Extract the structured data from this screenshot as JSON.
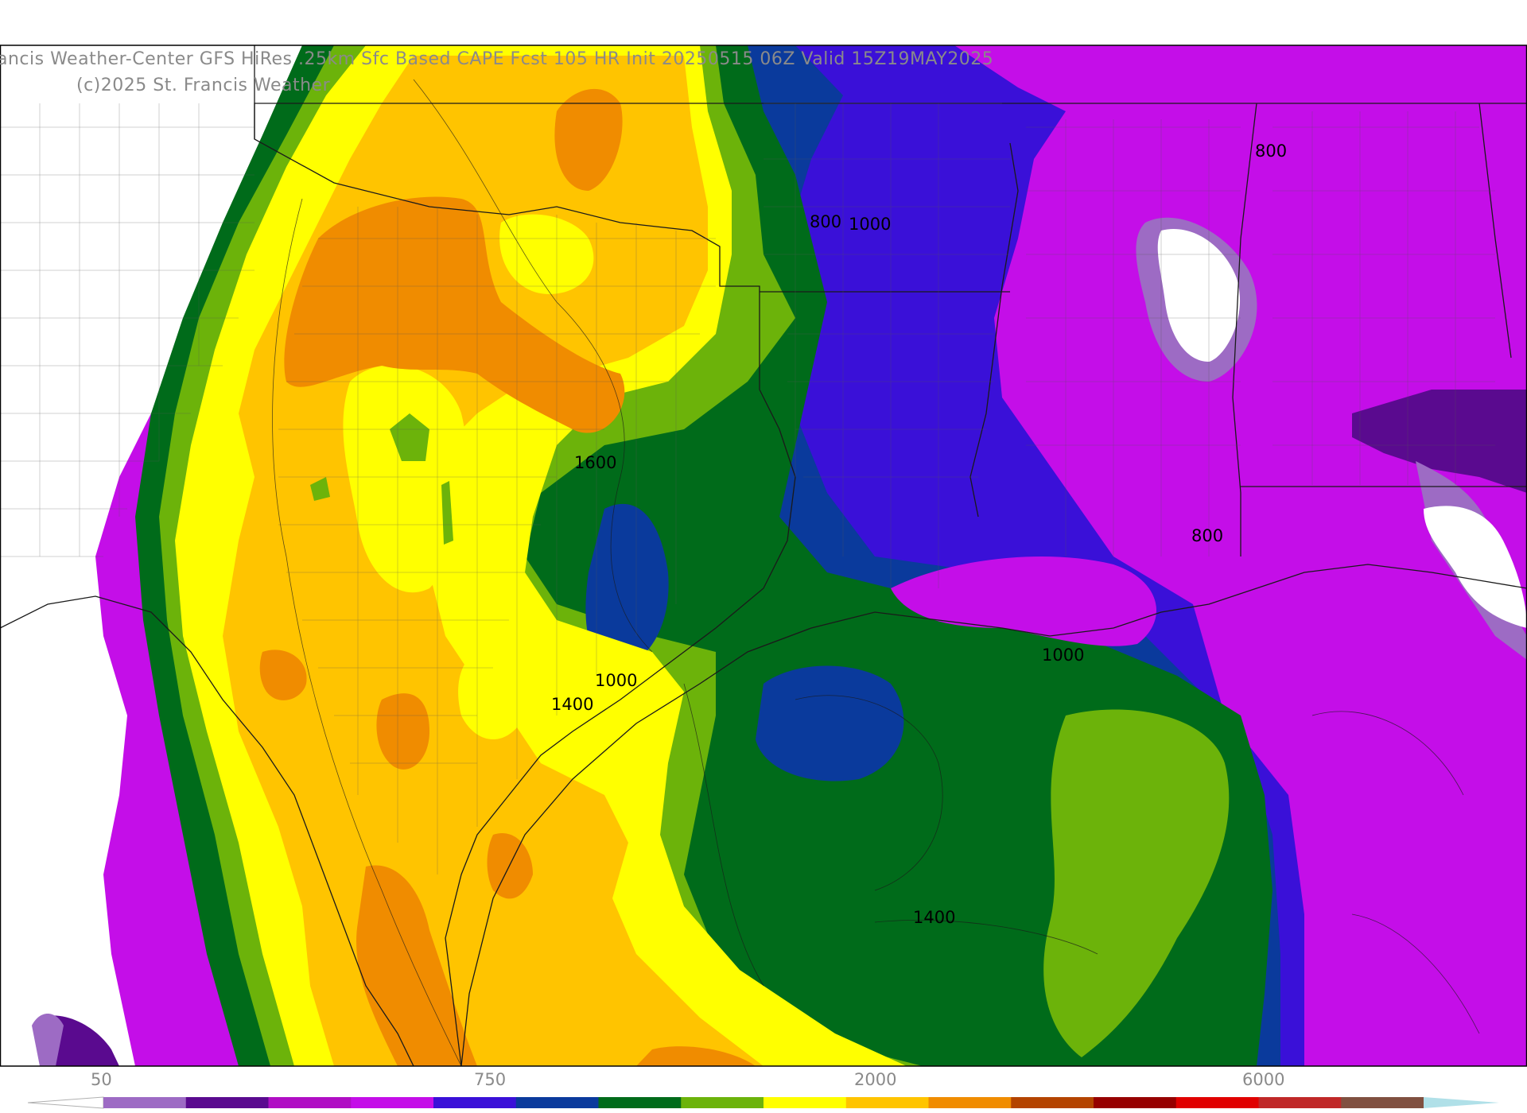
{
  "header": {
    "title": "ancis Weather-Center GFS HiRes .25km Sfc Based CAPE  Fcst 105 HR Init 20250515 06Z  Valid 15Z19MAY2025",
    "copyright": "(c)2025 St. Francis Weather"
  },
  "contour_labels": {
    "label_1600": "1600",
    "label_800_north": "800",
    "label_1000_north": "1000",
    "label_800_ne": "800",
    "label_800_coast": "800",
    "label_1000_texas": "1000",
    "label_1400_texas": "1400",
    "label_1000_gulf": "1000",
    "label_1400_gulf": "1400"
  },
  "colorbar": {
    "tick_labels": [
      "50",
      "750",
      "2000",
      "6000"
    ],
    "colors": [
      "#9d6bc4",
      "#5a0a8f",
      "#b00ec4",
      "#c40ee8",
      "#3a10d8",
      "#0a3a9c",
      "#006b1a",
      "#6cb30a",
      "#ffff00",
      "#ffc400",
      "#f08c00",
      "#b44400",
      "#960000",
      "#e00000",
      "#c02828",
      "#805040",
      "#909090",
      "#b0e0e8"
    ]
  },
  "legend_colors": {
    "white": "#ffffff",
    "lavender": "#9d6bc4",
    "dark_purple": "#5a0a8f",
    "magenta": "#c40ee8",
    "purple_blue": "#3a10d8",
    "navy": "#0a3a9c",
    "dark_green": "#006b1a",
    "light_green": "#6cb30a",
    "yellow": "#ffff00",
    "gold": "#ffc400",
    "orange": "#f08c00"
  }
}
